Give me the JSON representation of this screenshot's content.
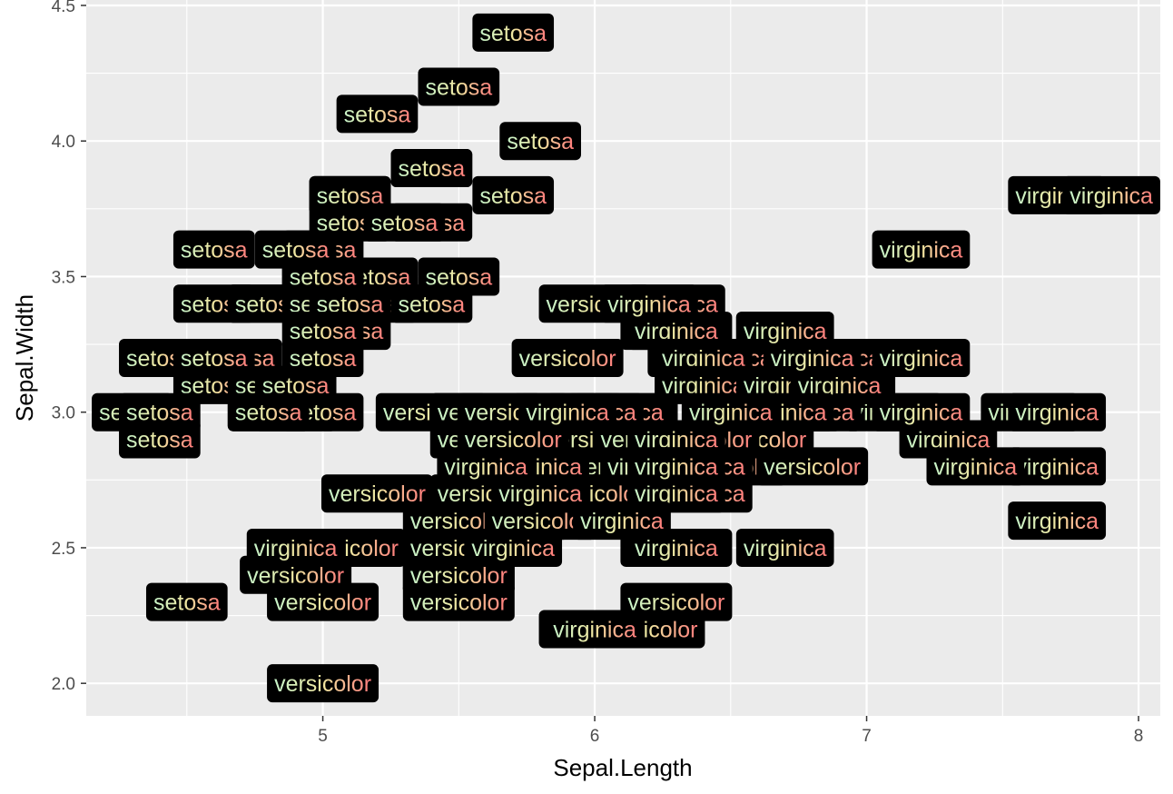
{
  "chart_data": {
    "type": "scatter",
    "geom": "label",
    "title": "",
    "xlabel": "Sepal.Length",
    "ylabel": "Sepal.Width",
    "xlim": [
      4.13,
      8.08
    ],
    "ylim": [
      1.88,
      4.52
    ],
    "x_ticks": [
      5,
      6,
      7,
      8
    ],
    "x_tick_labels": [
      "5",
      "6",
      "7",
      "8"
    ],
    "y_ticks": [
      2.0,
      2.5,
      3.0,
      3.5,
      4.0,
      4.5
    ],
    "y_tick_labels": [
      "2.0",
      "2.5",
      "3.0",
      "3.5",
      "4.0",
      "4.5"
    ],
    "grid": true,
    "legend": "none",
    "colors": {
      "panel_bg": "#ebebeb",
      "grid": "#ffffff",
      "label_fill": "#000000",
      "text_gradient": [
        "#c6f3c8",
        "#f0e6a0",
        "#ff7b7b"
      ]
    },
    "points": [
      {
        "x": 5.1,
        "y": 3.5,
        "label": "setosa"
      },
      {
        "x": 4.9,
        "y": 3.0,
        "label": "setosa"
      },
      {
        "x": 4.7,
        "y": 3.2,
        "label": "setosa"
      },
      {
        "x": 4.6,
        "y": 3.1,
        "label": "setosa"
      },
      {
        "x": 5.0,
        "y": 3.6,
        "label": "setosa"
      },
      {
        "x": 5.4,
        "y": 3.9,
        "label": "setosa"
      },
      {
        "x": 4.6,
        "y": 3.4,
        "label": "setosa"
      },
      {
        "x": 5.0,
        "y": 3.4,
        "label": "setosa"
      },
      {
        "x": 4.4,
        "y": 2.9,
        "label": "setosa"
      },
      {
        "x": 4.9,
        "y": 3.1,
        "label": "setosa"
      },
      {
        "x": 5.4,
        "y": 3.7,
        "label": "setosa"
      },
      {
        "x": 4.8,
        "y": 3.4,
        "label": "setosa"
      },
      {
        "x": 4.8,
        "y": 3.0,
        "label": "setosa"
      },
      {
        "x": 4.3,
        "y": 3.0,
        "label": "setosa"
      },
      {
        "x": 5.8,
        "y": 4.0,
        "label": "setosa"
      },
      {
        "x": 5.7,
        "y": 4.4,
        "label": "setosa"
      },
      {
        "x": 5.4,
        "y": 3.9,
        "label": "setosa"
      },
      {
        "x": 5.1,
        "y": 3.5,
        "label": "setosa"
      },
      {
        "x": 5.7,
        "y": 3.8,
        "label": "setosa"
      },
      {
        "x": 5.1,
        "y": 3.8,
        "label": "setosa"
      },
      {
        "x": 5.4,
        "y": 3.4,
        "label": "setosa"
      },
      {
        "x": 5.1,
        "y": 3.7,
        "label": "setosa"
      },
      {
        "x": 4.6,
        "y": 3.6,
        "label": "setosa"
      },
      {
        "x": 5.1,
        "y": 3.3,
        "label": "setosa"
      },
      {
        "x": 4.8,
        "y": 3.4,
        "label": "setosa"
      },
      {
        "x": 5.0,
        "y": 3.0,
        "label": "setosa"
      },
      {
        "x": 5.0,
        "y": 3.4,
        "label": "setosa"
      },
      {
        "x": 5.2,
        "y": 3.5,
        "label": "setosa"
      },
      {
        "x": 5.2,
        "y": 3.4,
        "label": "setosa"
      },
      {
        "x": 4.7,
        "y": 3.2,
        "label": "setosa"
      },
      {
        "x": 4.8,
        "y": 3.1,
        "label": "setosa"
      },
      {
        "x": 5.4,
        "y": 3.4,
        "label": "setosa"
      },
      {
        "x": 5.2,
        "y": 4.1,
        "label": "setosa"
      },
      {
        "x": 5.5,
        "y": 4.2,
        "label": "setosa"
      },
      {
        "x": 4.9,
        "y": 3.1,
        "label": "setosa"
      },
      {
        "x": 5.0,
        "y": 3.2,
        "label": "setosa"
      },
      {
        "x": 5.5,
        "y": 3.5,
        "label": "setosa"
      },
      {
        "x": 4.9,
        "y": 3.6,
        "label": "setosa"
      },
      {
        "x": 4.4,
        "y": 3.0,
        "label": "setosa"
      },
      {
        "x": 5.1,
        "y": 3.4,
        "label": "setosa"
      },
      {
        "x": 5.0,
        "y": 3.5,
        "label": "setosa"
      },
      {
        "x": 4.5,
        "y": 2.3,
        "label": "setosa"
      },
      {
        "x": 4.4,
        "y": 3.2,
        "label": "setosa"
      },
      {
        "x": 5.0,
        "y": 3.5,
        "label": "setosa"
      },
      {
        "x": 5.1,
        "y": 3.8,
        "label": "setosa"
      },
      {
        "x": 4.8,
        "y": 3.0,
        "label": "setosa"
      },
      {
        "x": 5.1,
        "y": 3.8,
        "label": "setosa"
      },
      {
        "x": 4.6,
        "y": 3.2,
        "label": "setosa"
      },
      {
        "x": 5.3,
        "y": 3.7,
        "label": "setosa"
      },
      {
        "x": 5.0,
        "y": 3.3,
        "label": "setosa"
      },
      {
        "x": 7.0,
        "y": 3.2,
        "label": "versicolor"
      },
      {
        "x": 6.4,
        "y": 3.2,
        "label": "versicolor"
      },
      {
        "x": 6.9,
        "y": 3.1,
        "label": "versicolor"
      },
      {
        "x": 5.5,
        "y": 2.3,
        "label": "versicolor"
      },
      {
        "x": 6.5,
        "y": 2.8,
        "label": "versicolor"
      },
      {
        "x": 5.7,
        "y": 2.8,
        "label": "versicolor"
      },
      {
        "x": 6.3,
        "y": 3.3,
        "label": "versicolor"
      },
      {
        "x": 4.9,
        "y": 2.4,
        "label": "versicolor"
      },
      {
        "x": 6.6,
        "y": 2.9,
        "label": "versicolor"
      },
      {
        "x": 5.2,
        "y": 2.7,
        "label": "versicolor"
      },
      {
        "x": 5.0,
        "y": 2.0,
        "label": "versicolor"
      },
      {
        "x": 5.9,
        "y": 3.0,
        "label": "versicolor"
      },
      {
        "x": 6.0,
        "y": 2.2,
        "label": "versicolor"
      },
      {
        "x": 6.1,
        "y": 2.9,
        "label": "versicolor"
      },
      {
        "x": 5.6,
        "y": 2.9,
        "label": "versicolor"
      },
      {
        "x": 6.7,
        "y": 3.1,
        "label": "versicolor"
      },
      {
        "x": 5.6,
        "y": 3.0,
        "label": "versicolor"
      },
      {
        "x": 5.8,
        "y": 2.7,
        "label": "versicolor"
      },
      {
        "x": 6.2,
        "y": 2.2,
        "label": "versicolor"
      },
      {
        "x": 5.6,
        "y": 2.5,
        "label": "versicolor"
      },
      {
        "x": 5.9,
        "y": 3.2,
        "label": "versicolor"
      },
      {
        "x": 6.1,
        "y": 2.8,
        "label": "versicolor"
      },
      {
        "x": 6.3,
        "y": 2.5,
        "label": "versicolor"
      },
      {
        "x": 6.1,
        "y": 2.8,
        "label": "versicolor"
      },
      {
        "x": 6.4,
        "y": 2.9,
        "label": "versicolor"
      },
      {
        "x": 6.6,
        "y": 3.0,
        "label": "versicolor"
      },
      {
        "x": 6.8,
        "y": 2.8,
        "label": "versicolor"
      },
      {
        "x": 6.7,
        "y": 3.0,
        "label": "versicolor"
      },
      {
        "x": 6.0,
        "y": 2.9,
        "label": "versicolor"
      },
      {
        "x": 5.7,
        "y": 2.6,
        "label": "versicolor"
      },
      {
        "x": 5.5,
        "y": 2.4,
        "label": "versicolor"
      },
      {
        "x": 5.5,
        "y": 2.4,
        "label": "versicolor"
      },
      {
        "x": 5.8,
        "y": 2.7,
        "label": "versicolor"
      },
      {
        "x": 6.0,
        "y": 2.7,
        "label": "versicolor"
      },
      {
        "x": 5.4,
        "y": 3.0,
        "label": "versicolor"
      },
      {
        "x": 6.0,
        "y": 3.4,
        "label": "versicolor"
      },
      {
        "x": 6.7,
        "y": 3.1,
        "label": "versicolor"
      },
      {
        "x": 6.3,
        "y": 2.3,
        "label": "versicolor"
      },
      {
        "x": 5.6,
        "y": 3.0,
        "label": "versicolor"
      },
      {
        "x": 5.5,
        "y": 2.5,
        "label": "versicolor"
      },
      {
        "x": 5.5,
        "y": 2.6,
        "label": "versicolor"
      },
      {
        "x": 6.1,
        "y": 3.0,
        "label": "versicolor"
      },
      {
        "x": 5.8,
        "y": 2.6,
        "label": "versicolor"
      },
      {
        "x": 5.0,
        "y": 2.3,
        "label": "versicolor"
      },
      {
        "x": 5.6,
        "y": 2.7,
        "label": "versicolor"
      },
      {
        "x": 5.7,
        "y": 3.0,
        "label": "versicolor"
      },
      {
        "x": 5.7,
        "y": 2.9,
        "label": "versicolor"
      },
      {
        "x": 6.2,
        "y": 2.9,
        "label": "versicolor"
      },
      {
        "x": 5.1,
        "y": 2.5,
        "label": "versicolor"
      },
      {
        "x": 5.7,
        "y": 2.8,
        "label": "versicolor"
      },
      {
        "x": 6.3,
        "y": 3.3,
        "label": "virginica"
      },
      {
        "x": 5.8,
        "y": 2.7,
        "label": "virginica"
      },
      {
        "x": 7.1,
        "y": 3.0,
        "label": "virginica"
      },
      {
        "x": 6.3,
        "y": 2.9,
        "label": "virginica"
      },
      {
        "x": 6.5,
        "y": 3.0,
        "label": "virginica"
      },
      {
        "x": 7.6,
        "y": 3.0,
        "label": "virginica"
      },
      {
        "x": 4.9,
        "y": 2.5,
        "label": "virginica"
      },
      {
        "x": 7.3,
        "y": 2.9,
        "label": "virginica"
      },
      {
        "x": 6.7,
        "y": 2.5,
        "label": "virginica"
      },
      {
        "x": 7.2,
        "y": 3.6,
        "label": "virginica"
      },
      {
        "x": 6.5,
        "y": 3.2,
        "label": "virginica"
      },
      {
        "x": 6.4,
        "y": 2.7,
        "label": "virginica"
      },
      {
        "x": 6.8,
        "y": 3.0,
        "label": "virginica"
      },
      {
        "x": 5.7,
        "y": 2.5,
        "label": "virginica"
      },
      {
        "x": 5.8,
        "y": 2.8,
        "label": "virginica"
      },
      {
        "x": 6.4,
        "y": 3.2,
        "label": "virginica"
      },
      {
        "x": 6.5,
        "y": 3.0,
        "label": "virginica"
      },
      {
        "x": 7.7,
        "y": 3.8,
        "label": "virginica"
      },
      {
        "x": 7.7,
        "y": 2.6,
        "label": "virginica"
      },
      {
        "x": 6.0,
        "y": 2.2,
        "label": "virginica"
      },
      {
        "x": 6.9,
        "y": 3.2,
        "label": "virginica"
      },
      {
        "x": 5.6,
        "y": 2.8,
        "label": "virginica"
      },
      {
        "x": 7.7,
        "y": 2.8,
        "label": "virginica"
      },
      {
        "x": 6.3,
        "y": 2.7,
        "label": "virginica"
      },
      {
        "x": 6.7,
        "y": 3.3,
        "label": "virginica"
      },
      {
        "x": 7.2,
        "y": 3.2,
        "label": "virginica"
      },
      {
        "x": 6.2,
        "y": 2.8,
        "label": "virginica"
      },
      {
        "x": 6.1,
        "y": 3.0,
        "label": "virginica"
      },
      {
        "x": 6.4,
        "y": 2.8,
        "label": "virginica"
      },
      {
        "x": 7.2,
        "y": 3.0,
        "label": "virginica"
      },
      {
        "x": 7.4,
        "y": 2.8,
        "label": "virginica"
      },
      {
        "x": 7.9,
        "y": 3.8,
        "label": "virginica"
      },
      {
        "x": 6.4,
        "y": 2.8,
        "label": "virginica"
      },
      {
        "x": 6.3,
        "y": 2.8,
        "label": "virginica"
      },
      {
        "x": 6.1,
        "y": 2.6,
        "label": "virginica"
      },
      {
        "x": 7.7,
        "y": 3.0,
        "label": "virginica"
      },
      {
        "x": 6.3,
        "y": 3.4,
        "label": "virginica"
      },
      {
        "x": 6.4,
        "y": 3.1,
        "label": "virginica"
      },
      {
        "x": 6.0,
        "y": 3.0,
        "label": "virginica"
      },
      {
        "x": 6.9,
        "y": 3.1,
        "label": "virginica"
      },
      {
        "x": 6.7,
        "y": 3.1,
        "label": "virginica"
      },
      {
        "x": 6.9,
        "y": 3.1,
        "label": "virginica"
      },
      {
        "x": 5.8,
        "y": 2.7,
        "label": "virginica"
      },
      {
        "x": 6.8,
        "y": 3.2,
        "label": "virginica"
      },
      {
        "x": 6.7,
        "y": 3.3,
        "label": "virginica"
      },
      {
        "x": 6.7,
        "y": 3.0,
        "label": "virginica"
      },
      {
        "x": 6.3,
        "y": 2.5,
        "label": "virginica"
      },
      {
        "x": 6.5,
        "y": 3.0,
        "label": "virginica"
      },
      {
        "x": 6.2,
        "y": 3.4,
        "label": "virginica"
      },
      {
        "x": 5.9,
        "y": 3.0,
        "label": "virginica"
      }
    ]
  }
}
